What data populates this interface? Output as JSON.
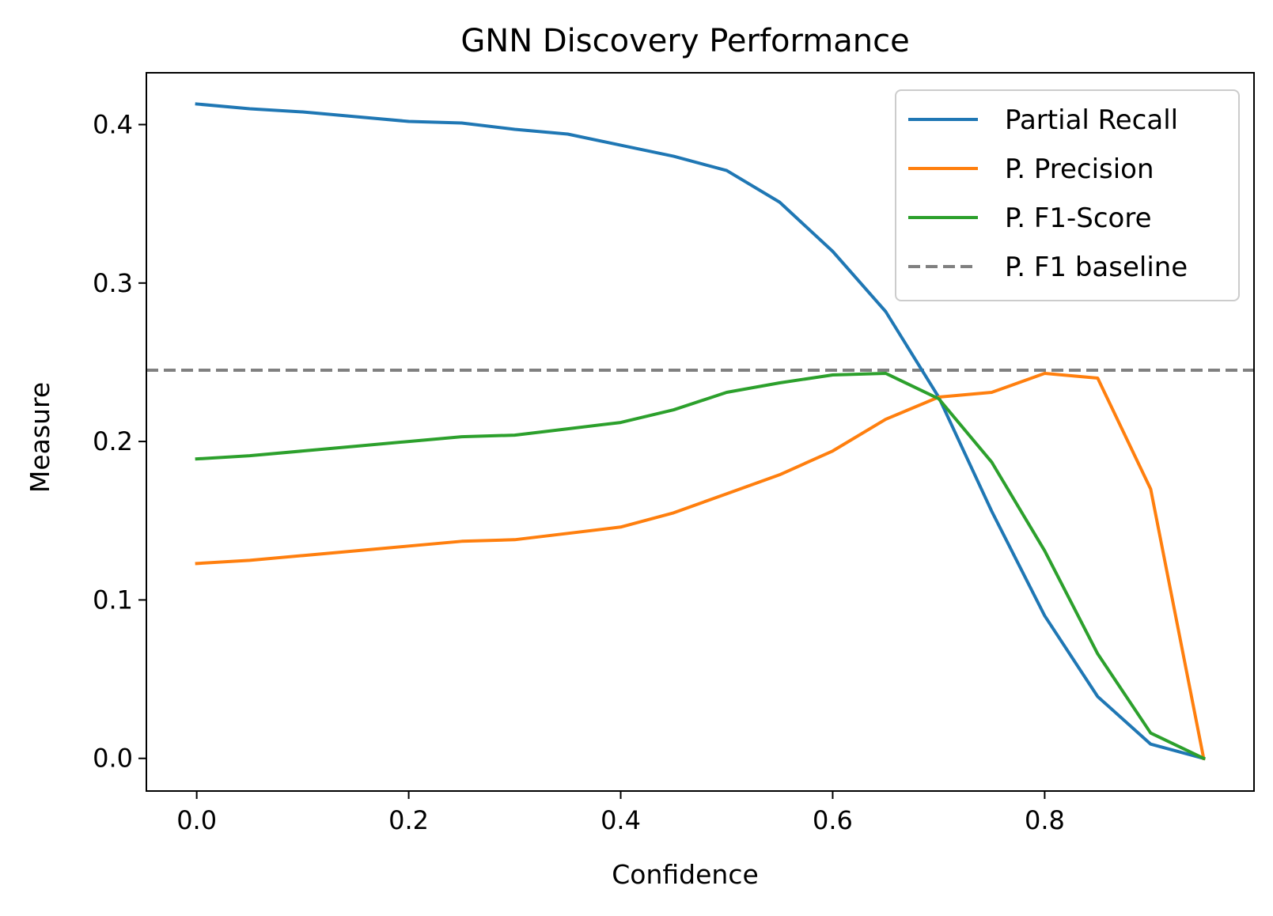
{
  "chart_data": {
    "type": "line",
    "title": "GNN Discovery Performance",
    "xlabel": "Confidence",
    "ylabel": "Measure",
    "xlim": [
      -0.0475,
      0.9975
    ],
    "ylim": [
      -0.0206,
      0.4327
    ],
    "xticks": [
      0.0,
      0.2,
      0.4,
      0.6,
      0.8
    ],
    "xtick_labels": [
      "0.0",
      "0.2",
      "0.4",
      "0.6",
      "0.8"
    ],
    "yticks": [
      0.0,
      0.1,
      0.2,
      0.3,
      0.4
    ],
    "ytick_labels": [
      "0.0",
      "0.1",
      "0.2",
      "0.3",
      "0.4"
    ],
    "grid": false,
    "legend_position": "top-right",
    "x": [
      0.0,
      0.05,
      0.1,
      0.15,
      0.2,
      0.25,
      0.3,
      0.35,
      0.4,
      0.45,
      0.5,
      0.55,
      0.6,
      0.65,
      0.7,
      0.75,
      0.8,
      0.85,
      0.9,
      0.95
    ],
    "series": [
      {
        "name": "Partial Recall",
        "color": "#1f77b4",
        "style": "solid",
        "values": [
          0.413,
          0.41,
          0.408,
          0.405,
          0.402,
          0.401,
          0.397,
          0.394,
          0.387,
          0.38,
          0.371,
          0.351,
          0.32,
          0.282,
          0.228,
          0.156,
          0.09,
          0.039,
          0.009,
          0.0
        ]
      },
      {
        "name": "P. Precision",
        "color": "#ff7f0e",
        "style": "solid",
        "values": [
          0.123,
          0.125,
          0.128,
          0.131,
          0.134,
          0.137,
          0.138,
          0.142,
          0.146,
          0.155,
          0.167,
          0.179,
          0.194,
          0.214,
          0.228,
          0.231,
          0.243,
          0.24,
          0.17,
          0.0
        ]
      },
      {
        "name": "P. F1-Score",
        "color": "#2ca02c",
        "style": "solid",
        "values": [
          0.189,
          0.191,
          0.194,
          0.197,
          0.2,
          0.203,
          0.204,
          0.208,
          0.212,
          0.22,
          0.231,
          0.237,
          0.242,
          0.243,
          0.227,
          0.187,
          0.131,
          0.066,
          0.016,
          0.0
        ]
      }
    ],
    "baseline": {
      "name": "P. F1 baseline",
      "color": "#808080",
      "style": "dashed",
      "value": 0.245
    }
  }
}
